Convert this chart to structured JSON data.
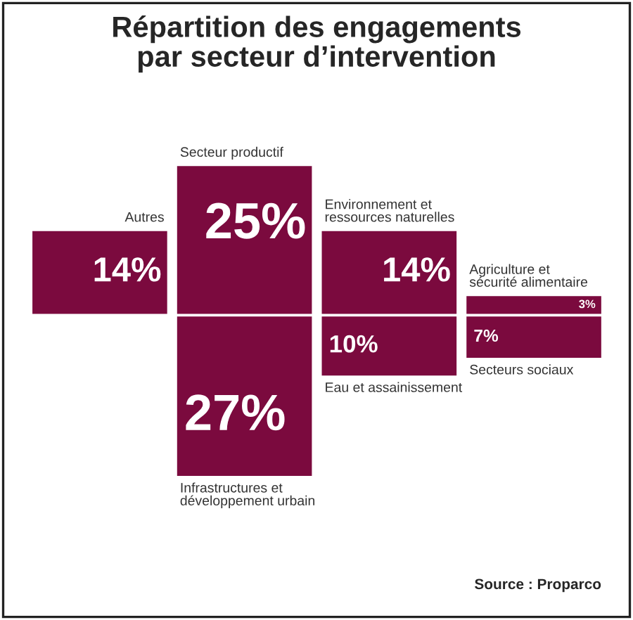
{
  "chart_data": {
    "type": "other",
    "title": "Répartition des engagements\npar secteur d’intervention",
    "categories": [
      "Autres",
      "Secteur productif",
      "Environnement et\nressources naturelles",
      "Agriculture et\nsécurité alimentaire",
      "Infrastructures et\ndéveloppement urbain",
      "Eau et assainissement",
      "Secteurs sociaux"
    ],
    "values": [
      14,
      25,
      14,
      3,
      27,
      10,
      7
    ],
    "value_labels": [
      "14%",
      "25%",
      "14%",
      "3%",
      "27%",
      "10%",
      "7%"
    ],
    "colors": [
      "#7b0a3e",
      "#7b0a3e",
      "#7b0a3e",
      "#7b0a3e",
      "#7b0a3e",
      "#7b0a3e",
      "#7b0a3e"
    ],
    "annotations": [
      "Source : Proparco"
    ]
  }
}
